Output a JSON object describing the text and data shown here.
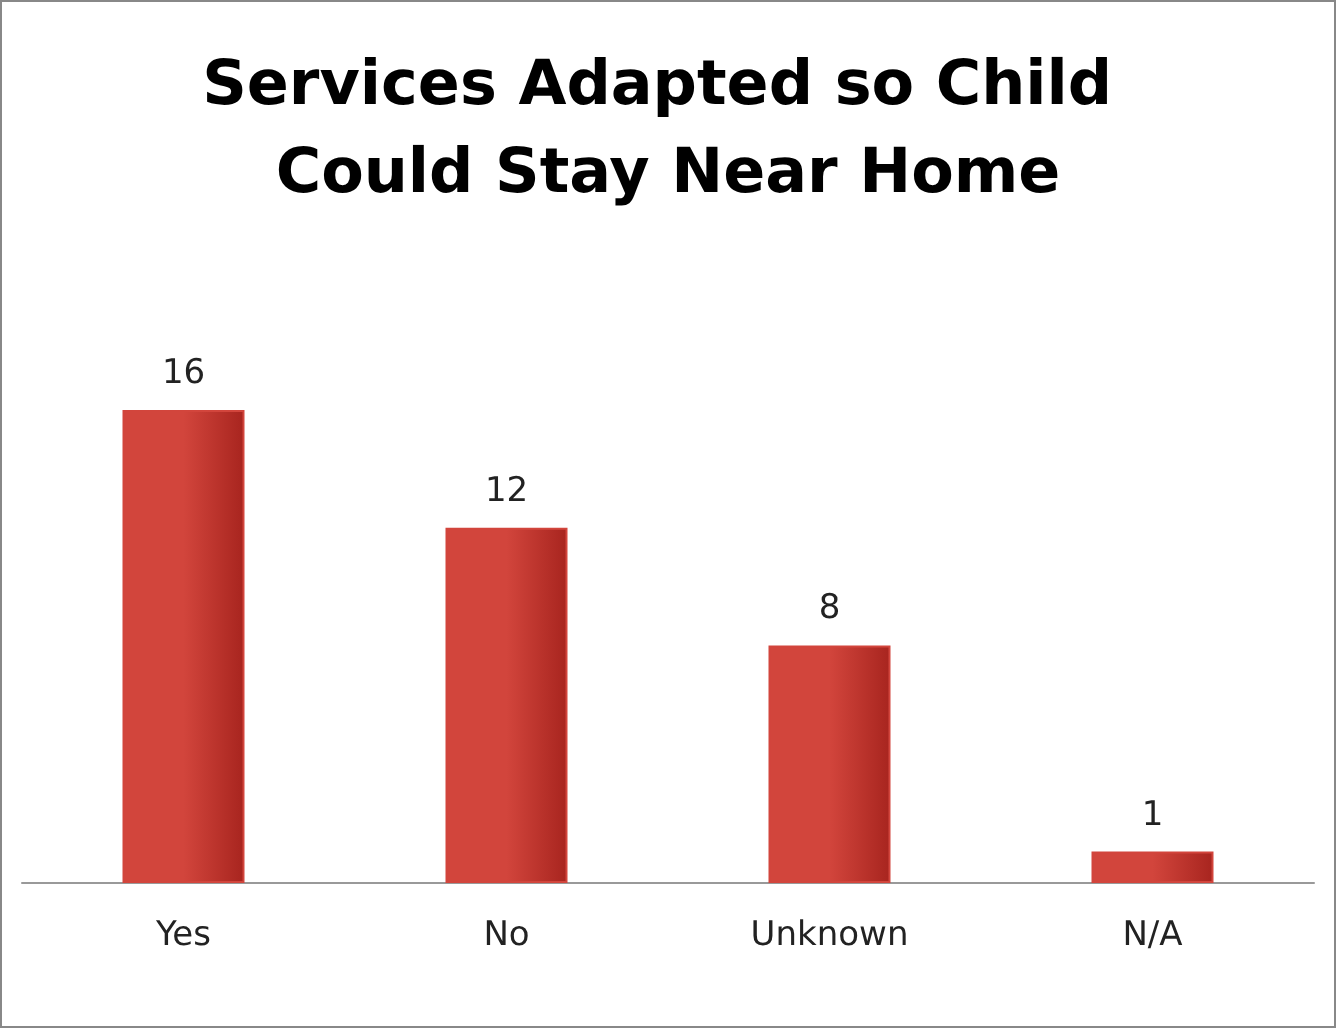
{
  "chart_data": {
    "type": "bar",
    "title": "Services Adapted so Child Could Stay Near Home",
    "categories": [
      "Yes",
      "No",
      "Unknown",
      "N/A"
    ],
    "values": [
      16,
      12,
      8,
      1
    ],
    "color": "#d2453c",
    "data_labels": true
  }
}
